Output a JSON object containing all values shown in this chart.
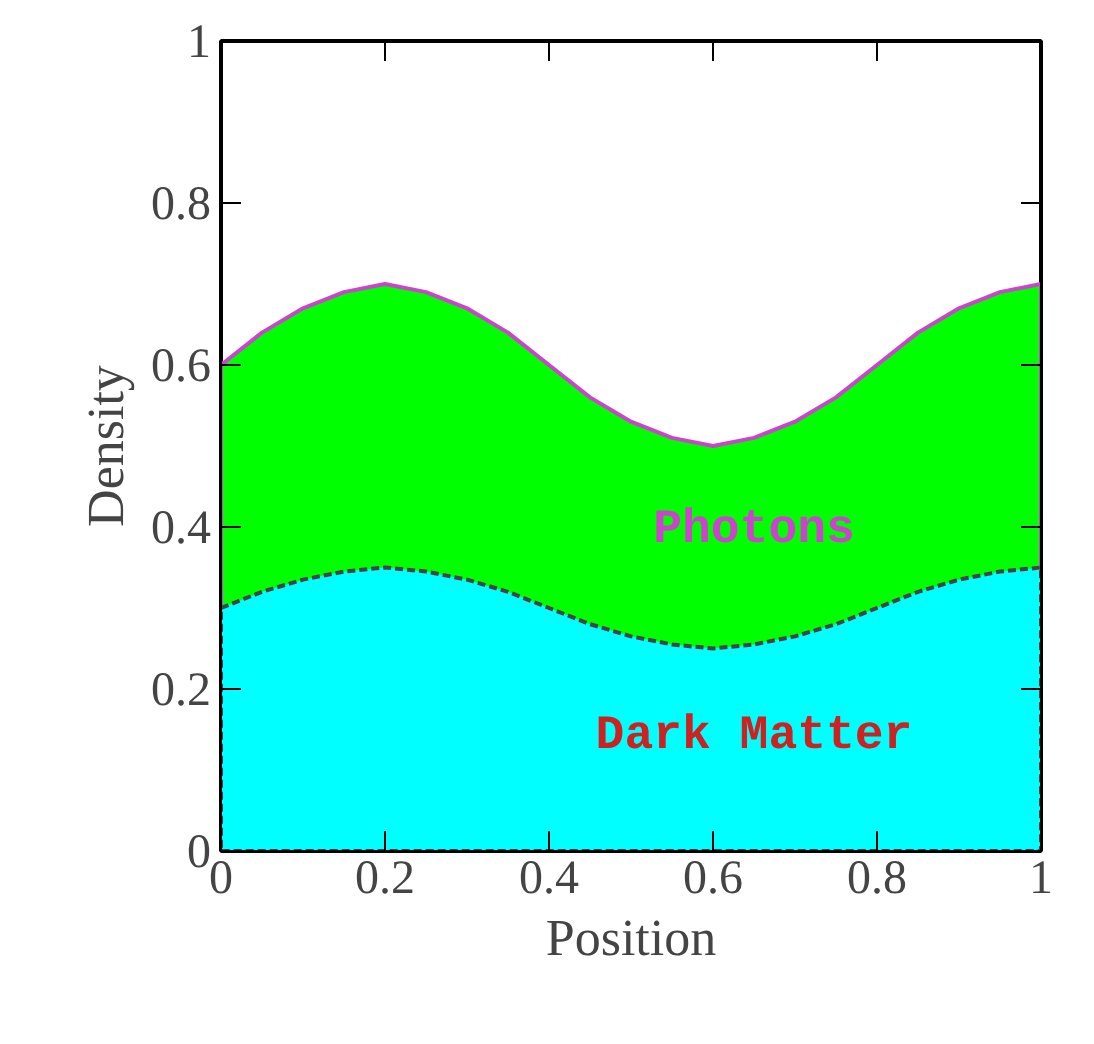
{
  "chart_data": {
    "type": "area",
    "xlabel": "Position",
    "ylabel": "Density",
    "x": [
      0,
      0.05,
      0.1,
      0.15,
      0.2,
      0.25,
      0.3,
      0.35,
      0.4,
      0.45,
      0.5,
      0.55,
      0.6,
      0.65,
      0.7,
      0.75,
      0.8,
      0.85,
      0.9,
      0.95,
      1
    ],
    "series": [
      {
        "name": "Dark Matter",
        "color": "#00ffff",
        "values": [
          0.3,
          0.32,
          0.335,
          0.345,
          0.35,
          0.345,
          0.335,
          0.32,
          0.3,
          0.28,
          0.265,
          0.255,
          0.25,
          0.255,
          0.265,
          0.28,
          0.3,
          0.32,
          0.335,
          0.345,
          0.35
        ]
      },
      {
        "name": "Photons",
        "color": "#00ff00",
        "values": [
          0.6,
          0.64,
          0.67,
          0.69,
          0.7,
          0.69,
          0.67,
          0.64,
          0.6,
          0.56,
          0.53,
          0.51,
          0.5,
          0.51,
          0.53,
          0.56,
          0.6,
          0.64,
          0.67,
          0.69,
          0.7
        ]
      }
    ],
    "xlim": [
      0,
      1
    ],
    "ylim": [
      0,
      1
    ],
    "xticks": [
      0,
      0.2,
      0.4,
      0.6,
      0.8,
      1
    ],
    "yticks": [
      0,
      0.2,
      0.4,
      0.6,
      0.8,
      1
    ]
  }
}
